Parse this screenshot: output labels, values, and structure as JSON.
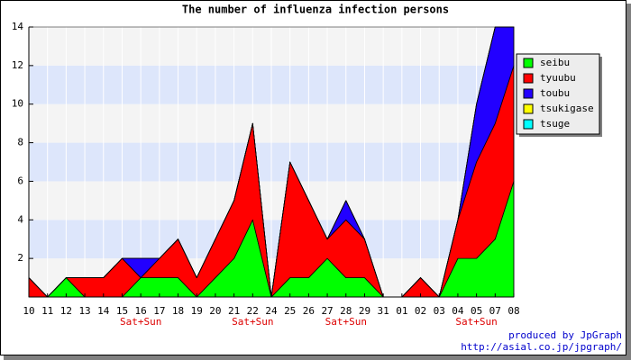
{
  "chart_data": {
    "type": "stacked_area",
    "title": "The number of influenza infection persons",
    "categories": [
      "10",
      "11",
      "12",
      "13",
      "14",
      "15",
      "16",
      "17",
      "18",
      "19",
      "20",
      "21",
      "22",
      "24",
      "25",
      "26",
      "27",
      "28",
      "29",
      "31",
      "01",
      "02",
      "03",
      "04",
      "05",
      "07",
      "08"
    ],
    "series": [
      {
        "name": "seibu",
        "color": "#00ff00",
        "values": [
          0,
          0,
          1,
          0,
          0,
          0,
          1,
          1,
          1,
          0,
          1,
          2,
          4,
          0,
          1,
          1,
          2,
          1,
          1,
          0,
          0,
          0,
          0,
          2,
          2,
          3,
          6
        ]
      },
      {
        "name": "tyuubu",
        "color": "#ff0000",
        "values": [
          1,
          0,
          0,
          1,
          1,
          2,
          0,
          1,
          2,
          1,
          2,
          3,
          5,
          0,
          6,
          4,
          1,
          3,
          2,
          0,
          0,
          1,
          0,
          2,
          5,
          6,
          6
        ]
      },
      {
        "name": "toubu",
        "color": "#2200ff",
        "values": [
          0,
          0,
          0,
          0,
          0,
          0,
          1,
          0,
          0,
          0,
          0,
          0,
          0,
          0,
          0,
          0,
          0,
          1,
          0,
          0,
          0,
          0,
          0,
          0,
          3,
          5,
          2
        ]
      },
      {
        "name": "tsukigase",
        "color": "#ffff00",
        "values": [
          0,
          0,
          0,
          0,
          0,
          0,
          0,
          0,
          0,
          0,
          0,
          0,
          0,
          0,
          0,
          0,
          0,
          0,
          0,
          0,
          0,
          0,
          0,
          0,
          0,
          0,
          0
        ]
      },
      {
        "name": "tsuge",
        "color": "#00ffff",
        "values": [
          0,
          0,
          0,
          0,
          0,
          0,
          0,
          0,
          0,
          0,
          0,
          0,
          0,
          0,
          0,
          0,
          0,
          0,
          0,
          0,
          0,
          0,
          0,
          0,
          0,
          0,
          0
        ]
      }
    ],
    "ylim": [
      0,
      14
    ],
    "yticks": [
      2,
      4,
      6,
      8,
      10,
      12,
      14
    ],
    "grid": true,
    "legend": "right",
    "annotations": [
      {
        "text": "Sat+Sun",
        "category": "16"
      },
      {
        "text": "Sat+Sun",
        "category": "22"
      },
      {
        "text": "Sat+Sun",
        "category": "28"
      },
      {
        "text": "Sat+Sun",
        "category": "05"
      }
    ],
    "credits": [
      "produced by JpGraph",
      "http://asial.co.jp/jpgraph/"
    ]
  }
}
